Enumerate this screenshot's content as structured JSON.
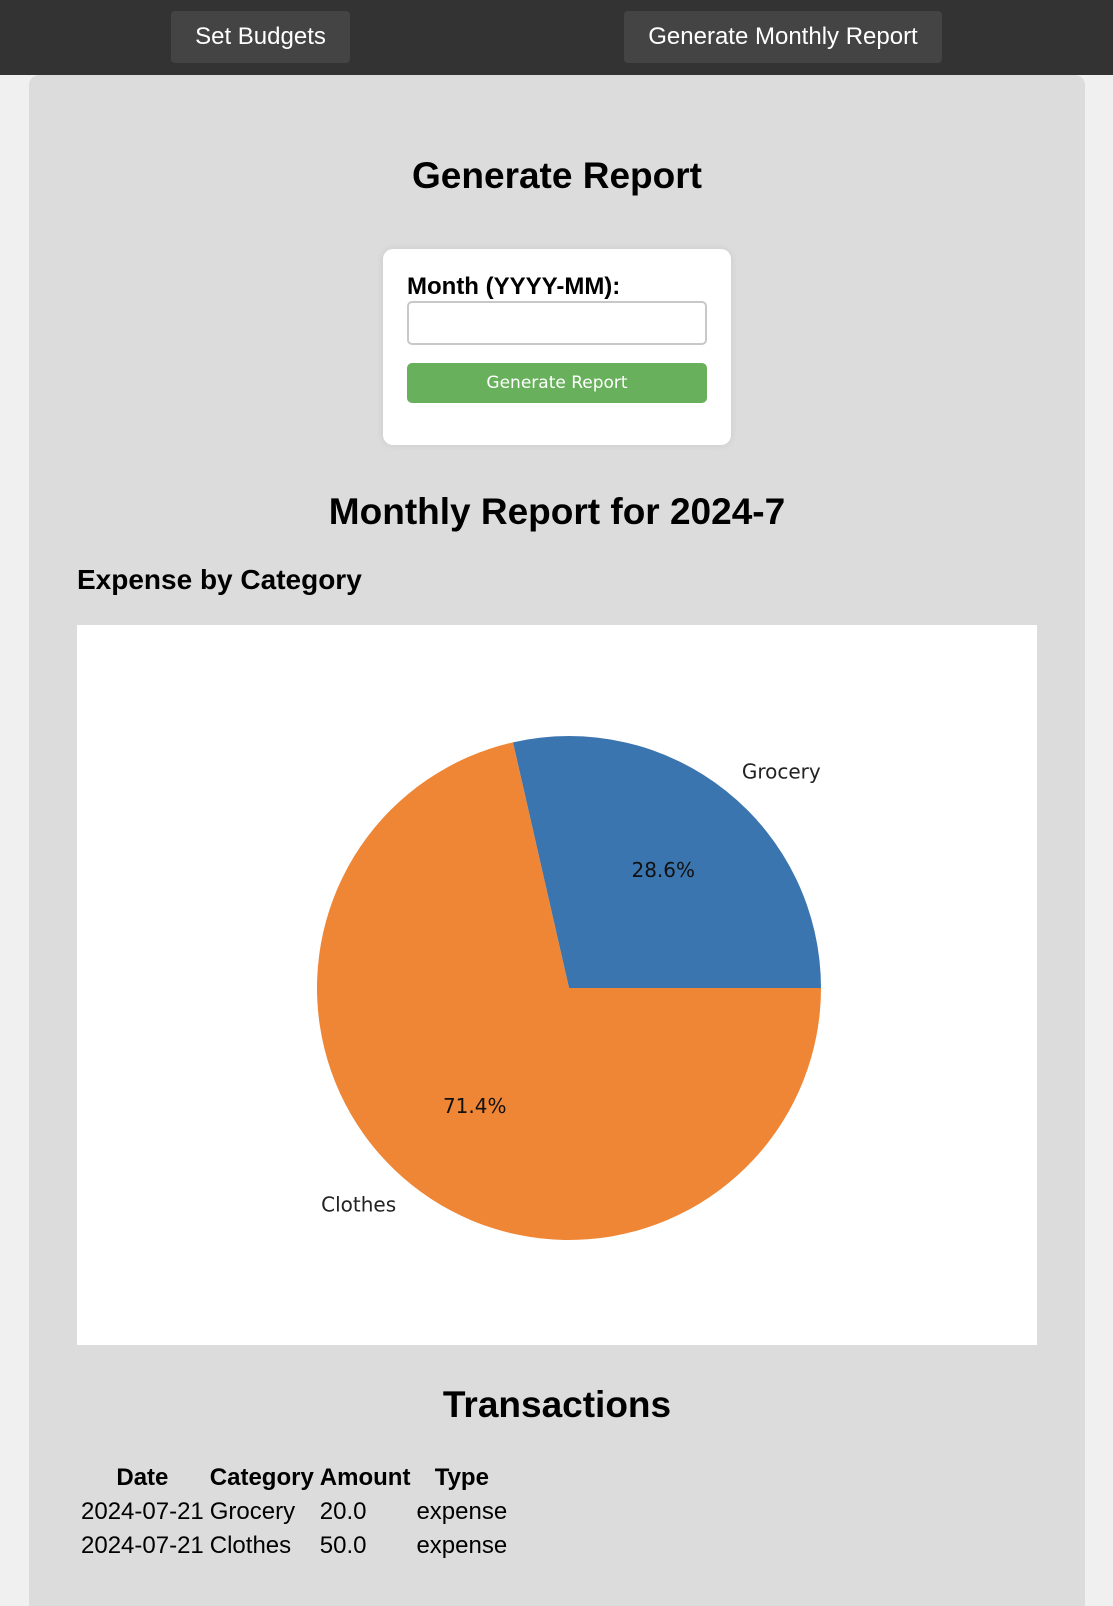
{
  "nav": {
    "set_budgets": "Set Budgets",
    "generate_monthly_report": "Generate Monthly Report"
  },
  "page": {
    "title": "Generate Report"
  },
  "form": {
    "month_label": "Month (YYYY-MM):",
    "month_value": "",
    "submit_label": "Generate Report"
  },
  "report": {
    "heading": "Monthly Report for 2024-7",
    "chart_heading": "Expense by Category",
    "transactions_heading": "Transactions"
  },
  "chart_data": {
    "type": "pie",
    "categories": [
      "Grocery",
      "Clothes"
    ],
    "values": [
      20.0,
      50.0
    ],
    "percent_labels": [
      "28.6%",
      "71.4%"
    ],
    "colors": [
      "#3a75af",
      "#ef8636"
    ],
    "title": ""
  },
  "transactions": {
    "columns": [
      "Date",
      "Category",
      "Amount",
      "Type"
    ],
    "rows": [
      [
        "2024-07-21",
        "Grocery",
        "20.0",
        "expense"
      ],
      [
        "2024-07-21",
        "Clothes",
        "50.0",
        "expense"
      ]
    ]
  }
}
